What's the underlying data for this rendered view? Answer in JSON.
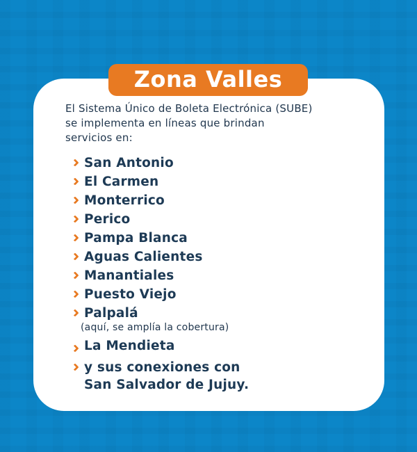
{
  "page": {
    "background_color": "#0c86c8",
    "pattern_color": "#0b7dba",
    "card_color": "#ffffff"
  },
  "banner": {
    "title": "Zona Valles",
    "background_color": "#e87a22",
    "text_color": "#ffffff"
  },
  "intro": {
    "line1": "El Sistema Único de Boleta Electrónica (SUBE)",
    "line2": "se implementa en líneas que brindan",
    "line3": "servicios en:"
  },
  "list": {
    "chevron_color": "#e87a22",
    "text_color": "#1d3a55",
    "items": [
      {
        "label": "San Antonio"
      },
      {
        "label": "El Carmen"
      },
      {
        "label": "Monterrico"
      },
      {
        "label": "Perico"
      },
      {
        "label": "Pampa Blanca"
      },
      {
        "label": "Aguas Calientes"
      },
      {
        "label": "Manantiales"
      },
      {
        "label": "Puesto Viejo"
      },
      {
        "label": "Palpalá",
        "note": "(aquí, se amplía la cobertura)"
      },
      {
        "label": "La Mendieta"
      },
      {
        "label": "y sus conexiones con",
        "label_line2": "San Salvador de Jujuy."
      }
    ]
  }
}
